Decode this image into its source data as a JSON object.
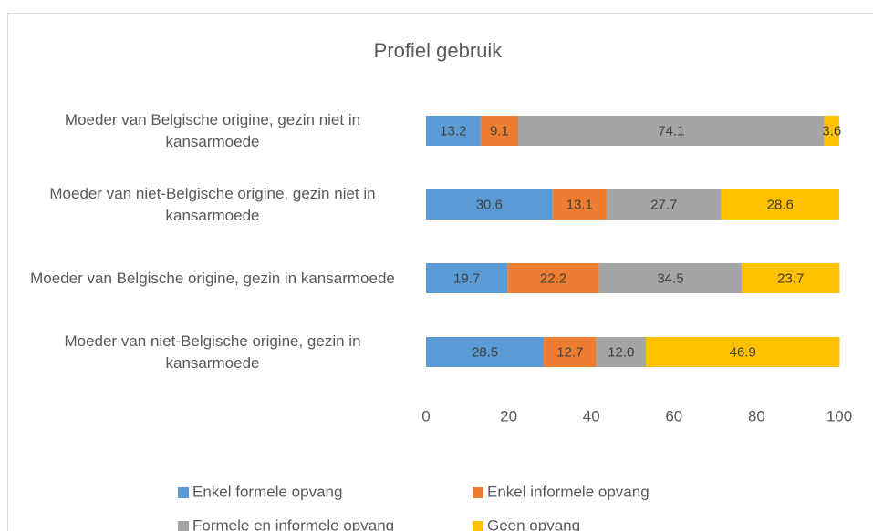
{
  "chart_data": {
    "type": "stacked-bar-horizontal",
    "title": "Profiel gebruik",
    "categories": [
      "Moeder van Belgische origine, gezin niet in kansarmoede",
      "Moeder van niet-Belgische origine, gezin niet in kansarmoede",
      "Moeder van Belgische origine, gezin in kansarmoede",
      "Moeder van niet-Belgische origine, gezin in kansarmoede"
    ],
    "series": [
      {
        "name": "Enkel formele opvang",
        "color": "#5b9bd5",
        "values": [
          13.2,
          30.6,
          19.7,
          28.5
        ],
        "value_labels": [
          "13.2",
          "30.6",
          "19.7",
          "28.5"
        ]
      },
      {
        "name": "Enkel informele opvang",
        "color": "#ed7d31",
        "values": [
          9.1,
          13.1,
          22.2,
          12.7
        ],
        "value_labels": [
          "9.1",
          "13.1",
          "22.2",
          "12.7"
        ]
      },
      {
        "name": "Formele en informele opvang",
        "color": "#a5a5a5",
        "values": [
          74.1,
          27.7,
          34.5,
          12.0
        ],
        "value_labels": [
          "74.1",
          "27.7",
          "34.5",
          "12.0"
        ]
      },
      {
        "name": "Geen opvang",
        "color": "#ffc000",
        "values": [
          3.6,
          28.6,
          23.7,
          46.9
        ],
        "value_labels": [
          "3.6",
          "28.6",
          "23.7",
          "46.9"
        ]
      }
    ],
    "xlim": [
      0,
      100
    ],
    "xticks": [
      0,
      20,
      40,
      60,
      80,
      100
    ],
    "legend": "bottom"
  }
}
